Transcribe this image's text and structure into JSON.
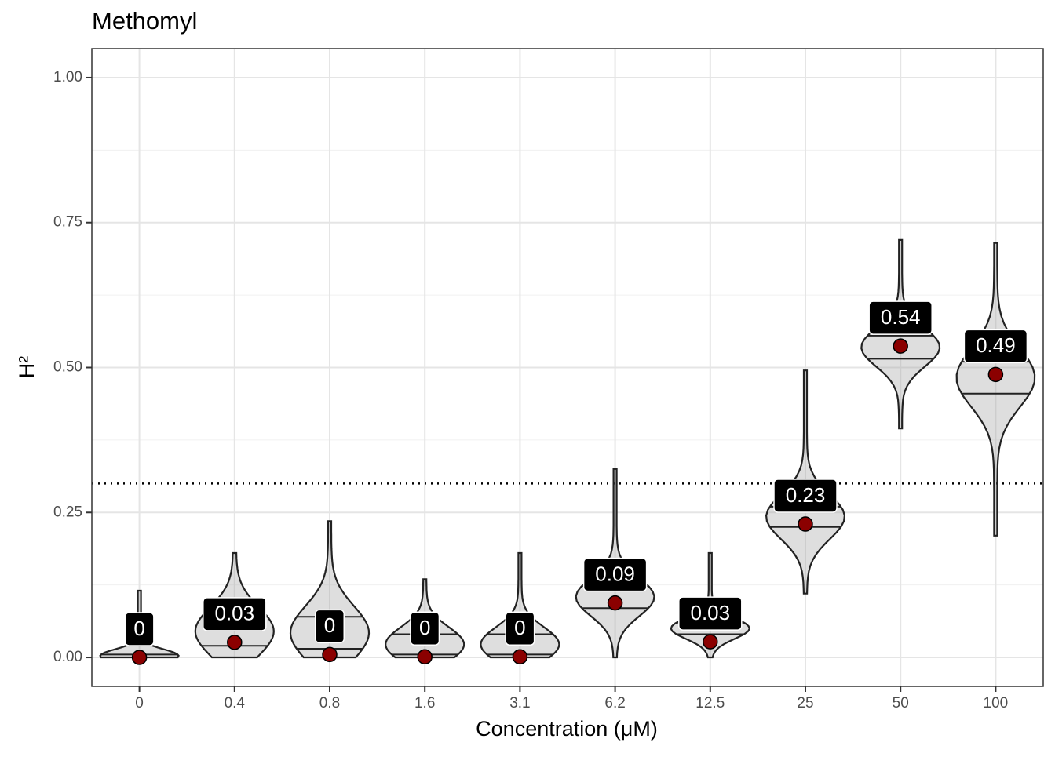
{
  "chart_data": {
    "type": "violin",
    "title": "Methomyl",
    "xlabel": "Concentration (μM)",
    "ylabel": "H²",
    "categories": [
      "0",
      "0.4",
      "0.8",
      "1.6",
      "3.1",
      "6.2",
      "12.5",
      "25",
      "50",
      "100"
    ],
    "min": [
      0,
      0,
      0,
      0,
      0,
      0,
      0,
      0.11,
      0.395,
      0.21
    ],
    "max": [
      0.115,
      0.18,
      0.235,
      0.135,
      0.18,
      0.325,
      0.18,
      0.495,
      0.72,
      0.715
    ],
    "q1": [
      0,
      0.02,
      0.015,
      0.005,
      0.005,
      0.085,
      0.04,
      0.225,
      0.515,
      0.455
    ],
    "q3": [
      0.005,
      0.07,
      0.07,
      0.04,
      0.04,
      0.123,
      0.06,
      0.26,
      0.555,
      0.51
    ],
    "values": [
      0.0,
      0.026,
      0.005,
      0.001,
      0.001,
      0.094,
      0.027,
      0.23,
      0.537,
      0.488
    ],
    "value_labels": [
      "0",
      "0.03",
      "0",
      "0",
      "0",
      "0.09",
      "0.03",
      "0.23",
      "0.54",
      "0.49"
    ],
    "mean_color": "#8b0000",
    "threshold": 0.3,
    "ylim": [
      -0.05,
      1.05
    ],
    "yticks": [
      {
        "value": 0,
        "label": "0.00"
      },
      {
        "value": 0.25,
        "label": "0.25"
      },
      {
        "value": 0.5,
        "label": "0.50"
      },
      {
        "value": 0.75,
        "label": "0.75"
      },
      {
        "value": 1,
        "label": "1.00"
      }
    ],
    "grid": true
  }
}
